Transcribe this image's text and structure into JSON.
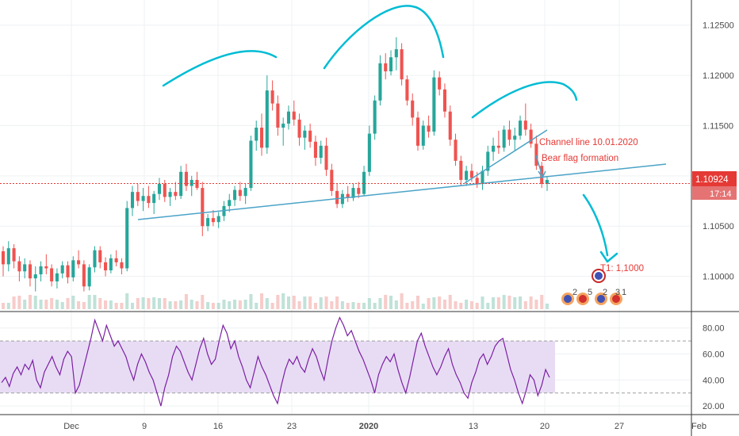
{
  "chart_data": [
    {
      "type": "candlestick",
      "price_labels": [
        "1.12500",
        "1.12000",
        "1.11500",
        "1.11000",
        "1.10500",
        "1.10000"
      ],
      "price_ticks": [
        1.125,
        1.12,
        1.115,
        1.11,
        1.105,
        1.1
      ],
      "ylim": [
        1.0965,
        1.1275
      ],
      "time_labels": [
        "Dec",
        "9",
        "16",
        "23",
        "2020",
        "13",
        "20",
        "27",
        "Feb"
      ],
      "bold_time_labels": [
        "2020"
      ],
      "last_price": "1.10924",
      "last_price_value": 1.10924,
      "countdown": "17:14",
      "colors": {
        "up": "#26a69a",
        "down": "#ef5350",
        "drawing": "#00bcd4",
        "trendline": "#4ba3c7",
        "annotation": "#e53935",
        "price_line": "#e53935"
      },
      "candles": [
        [
          1.1025,
          1.103,
          1.1,
          1.1012
        ],
        [
          1.1012,
          1.1035,
          1.1005,
          1.1028
        ],
        [
          1.1028,
          1.1032,
          1.1008,
          1.1015
        ],
        [
          1.1015,
          1.102,
          1.0995,
          1.1005
        ],
        [
          1.1005,
          1.1018,
          1.0998,
          1.1012
        ],
        [
          1.1012,
          1.1016,
          1.099,
          1.0998
        ],
        [
          1.0998,
          1.101,
          1.0985,
          1.1002
        ],
        [
          1.1002,
          1.1015,
          1.0995,
          1.101
        ],
        [
          1.101,
          1.1022,
          1.1002,
          1.1008
        ],
        [
          1.1008,
          1.1012,
          1.099,
          1.0995
        ],
        [
          1.0995,
          1.1008,
          1.0988,
          1.1003
        ],
        [
          1.1003,
          1.1015,
          1.0998,
          1.1011
        ],
        [
          1.1011,
          1.1015,
          1.0993,
          1.0999
        ],
        [
          1.0999,
          1.102,
          1.0995,
          1.1016
        ],
        [
          1.1016,
          1.1026,
          1.1008,
          1.1012
        ],
        [
          1.1012,
          1.1016,
          1.0985,
          1.099
        ],
        [
          1.099,
          1.1012,
          1.0986,
          1.1009
        ],
        [
          1.1009,
          1.103,
          1.1004,
          1.1026
        ],
        [
          1.1026,
          1.103,
          1.1008,
          1.1014
        ],
        [
          1.1014,
          1.1019,
          1.1,
          1.1006
        ],
        [
          1.1006,
          1.1022,
          1.1003,
          1.1018
        ],
        [
          1.1018,
          1.1026,
          1.101,
          1.1014
        ],
        [
          1.1014,
          1.1018,
          1.1002,
          1.1008
        ],
        [
          1.1008,
          1.1075,
          1.1005,
          1.1068
        ],
        [
          1.1068,
          1.109,
          1.106,
          1.1084
        ],
        [
          1.1084,
          1.1092,
          1.107,
          1.1075
        ],
        [
          1.1075,
          1.1088,
          1.1065,
          1.108
        ],
        [
          1.108,
          1.109,
          1.1068,
          1.1073
        ],
        [
          1.1073,
          1.1085,
          1.1062,
          1.1082
        ],
        [
          1.1082,
          1.1098,
          1.1076,
          1.1092
        ],
        [
          1.1092,
          1.1096,
          1.1074,
          1.1079
        ],
        [
          1.1079,
          1.1088,
          1.107,
          1.1084
        ],
        [
          1.1084,
          1.1094,
          1.1076,
          1.108
        ],
        [
          1.108,
          1.111,
          1.1077,
          1.1104
        ],
        [
          1.1104,
          1.1112,
          1.1085,
          1.109
        ],
        [
          1.109,
          1.11,
          1.108,
          1.1096
        ],
        [
          1.1096,
          1.1104,
          1.1086,
          1.1088
        ],
        [
          1.1088,
          1.1094,
          1.104,
          1.105
        ],
        [
          1.105,
          1.1062,
          1.1045,
          1.1058
        ],
        [
          1.1058,
          1.1066,
          1.105,
          1.1054
        ],
        [
          1.1054,
          1.1064,
          1.1048,
          1.106
        ],
        [
          1.106,
          1.1075,
          1.1055,
          1.107
        ],
        [
          1.107,
          1.1082,
          1.1064,
          1.1076
        ],
        [
          1.1076,
          1.109,
          1.107,
          1.1086
        ],
        [
          1.1086,
          1.1094,
          1.1075,
          1.108
        ],
        [
          1.108,
          1.1092,
          1.1072,
          1.1088
        ],
        [
          1.1088,
          1.114,
          1.1085,
          1.1135
        ],
        [
          1.1135,
          1.1155,
          1.1125,
          1.1148
        ],
        [
          1.1148,
          1.1162,
          1.112,
          1.1128
        ],
        [
          1.1128,
          1.12,
          1.1122,
          1.1185
        ],
        [
          1.1185,
          1.1195,
          1.1165,
          1.1172
        ],
        [
          1.1172,
          1.118,
          1.114,
          1.1148
        ],
        [
          1.1148,
          1.1158,
          1.113,
          1.1152
        ],
        [
          1.1152,
          1.117,
          1.1146,
          1.1164
        ],
        [
          1.1164,
          1.1175,
          1.115,
          1.1156
        ],
        [
          1.1156,
          1.1162,
          1.113,
          1.1138
        ],
        [
          1.1138,
          1.115,
          1.1126,
          1.1145
        ],
        [
          1.1145,
          1.1152,
          1.1128,
          1.1134
        ],
        [
          1.1134,
          1.114,
          1.111,
          1.1118
        ],
        [
          1.1118,
          1.1135,
          1.1112,
          1.113
        ],
        [
          1.113,
          1.1138,
          1.11,
          1.1106
        ],
        [
          1.1106,
          1.1112,
          1.108,
          1.1085
        ],
        [
          1.1085,
          1.1092,
          1.1068,
          1.1072
        ],
        [
          1.1072,
          1.1086,
          1.1068,
          1.1082
        ],
        [
          1.1082,
          1.109,
          1.1074,
          1.1078
        ],
        [
          1.1078,
          1.1092,
          1.1075,
          1.1088
        ],
        [
          1.1088,
          1.1094,
          1.1078,
          1.1082
        ],
        [
          1.1082,
          1.111,
          1.108,
          1.1104
        ],
        [
          1.1104,
          1.115,
          1.11,
          1.1142
        ],
        [
          1.1142,
          1.118,
          1.1136,
          1.1175
        ],
        [
          1.1175,
          1.122,
          1.117,
          1.1212
        ],
        [
          1.1212,
          1.1222,
          1.1196,
          1.1204
        ],
        [
          1.1204,
          1.1225,
          1.12,
          1.1218
        ],
        [
          1.1218,
          1.1238,
          1.1205,
          1.1226
        ],
        [
          1.1226,
          1.1232,
          1.119,
          1.1196
        ],
        [
          1.1196,
          1.12,
          1.117,
          1.1175
        ],
        [
          1.1175,
          1.1182,
          1.115,
          1.1158
        ],
        [
          1.1158,
          1.1164,
          1.1125,
          1.113
        ],
        [
          1.113,
          1.1155,
          1.1126,
          1.115
        ],
        [
          1.115,
          1.116,
          1.1138,
          1.1144
        ],
        [
          1.1144,
          1.1205,
          1.114,
          1.1198
        ],
        [
          1.1198,
          1.1204,
          1.118,
          1.1186
        ],
        [
          1.1186,
          1.1192,
          1.1158,
          1.1164
        ],
        [
          1.1164,
          1.117,
          1.113,
          1.1136
        ],
        [
          1.1136,
          1.1142,
          1.111,
          1.1115
        ],
        [
          1.1115,
          1.112,
          1.109,
          1.1096
        ],
        [
          1.1096,
          1.111,
          1.109,
          1.1105
        ],
        [
          1.1105,
          1.1112,
          1.1094,
          1.1098
        ],
        [
          1.1098,
          1.1104,
          1.1088,
          1.1092
        ],
        [
          1.1092,
          1.111,
          1.1086,
          1.1105
        ],
        [
          1.1105,
          1.113,
          1.11,
          1.1124
        ],
        [
          1.1124,
          1.1138,
          1.1115,
          1.113
        ],
        [
          1.113,
          1.1145,
          1.1122,
          1.1128
        ],
        [
          1.1128,
          1.115,
          1.1124,
          1.1146
        ],
        [
          1.1146,
          1.1155,
          1.113,
          1.1136
        ],
        [
          1.1136,
          1.1148,
          1.1125,
          1.114
        ],
        [
          1.114,
          1.116,
          1.1136,
          1.1155
        ],
        [
          1.1155,
          1.1172,
          1.114,
          1.1146
        ],
        [
          1.1146,
          1.1152,
          1.1128,
          1.1132
        ],
        [
          1.1132,
          1.114,
          1.1106,
          1.111
        ],
        [
          1.111,
          1.1114,
          1.1088,
          1.1092
        ],
        [
          1.1092,
          1.11,
          1.1085,
          1.1096
        ]
      ]
    },
    {
      "type": "line",
      "ylabels": [
        "80.00",
        "60.00",
        "40.00",
        "20.00"
      ],
      "yticks": [
        80,
        60,
        40,
        20
      ],
      "ylim": [
        14,
        92
      ],
      "band": [
        30,
        70
      ],
      "color": "#7b1fa2",
      "band_color": "#e8dcf5",
      "values": [
        38,
        42,
        35,
        45,
        50,
        44,
        52,
        48,
        55,
        40,
        34,
        46,
        52,
        58,
        50,
        44,
        56,
        62,
        58,
        30,
        36,
        48,
        60,
        72,
        86,
        78,
        70,
        82,
        74,
        66,
        70,
        64,
        58,
        48,
        40,
        52,
        60,
        54,
        46,
        40,
        30,
        20,
        34,
        44,
        58,
        66,
        62,
        54,
        46,
        40,
        52,
        64,
        72,
        60,
        52,
        56,
        70,
        82,
        76,
        64,
        70,
        58,
        50,
        40,
        34,
        46,
        58,
        50,
        44,
        36,
        28,
        22,
        36,
        48,
        56,
        52,
        58,
        50,
        46,
        56,
        64,
        58,
        48,
        40,
        56,
        70,
        80,
        88,
        82,
        74,
        78,
        70,
        62,
        56,
        48,
        40,
        30,
        44,
        52,
        58,
        54,
        60,
        48,
        38,
        30,
        42,
        56,
        70,
        76,
        66,
        58,
        50,
        44,
        50,
        58,
        64,
        52,
        44,
        38,
        30,
        26,
        38,
        46,
        56,
        60,
        52,
        58,
        66,
        70,
        72,
        60,
        48,
        40,
        30,
        22,
        32,
        44,
        40,
        28,
        36,
        48,
        42
      ]
    }
  ],
  "annotations": {
    "channel_line": "Channel line 10.01.2020",
    "bear_flag": "Bear flag formation",
    "target": "T1: 1,1000"
  },
  "event_markers": [
    "2",
    "5",
    "2",
    "3",
    "1"
  ]
}
